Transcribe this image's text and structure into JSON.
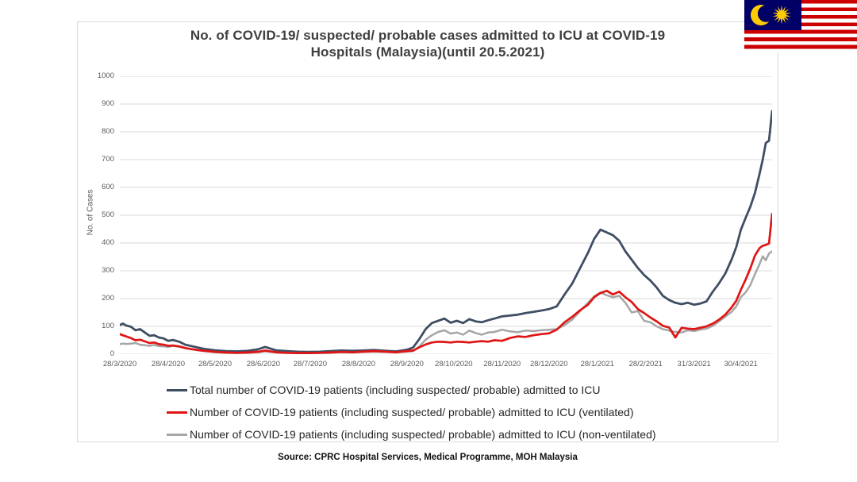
{
  "title_lines": [
    "No. of COVID-19/ suspected/ probable cases admitted to ICU at COVID-19",
    "Hospitals (Malaysia)(until 20.5.2021)"
  ],
  "source": "Source: CPRC Hospital Services, Medical Programme, MOH Malaysia",
  "flag": {
    "name": "flag-of-malaysia",
    "stripe_red": "#cc0001",
    "stripe_white": "#ffffff",
    "canton_blue": "#010066",
    "crescent_star_yellow": "#ffcc00"
  },
  "colors": {
    "grid": "#d9d9d9",
    "axis_text": "#595959",
    "title_text": "#3f3f3f",
    "legend_text": "#262626"
  },
  "chart_data": {
    "type": "line",
    "title": "No. of COVID-19/ suspected/ probable cases admitted to ICU at COVID-19 Hospitals (Malaysia)(until 20.5.2021)",
    "xlabel": "",
    "ylabel": "No. of Cases",
    "ylim": [
      0,
      1000
    ],
    "yticks": [
      0,
      100,
      200,
      300,
      400,
      500,
      600,
      700,
      800,
      900,
      1000
    ],
    "grid": "horizontal",
    "legend_position": "bottom-left",
    "x_total_days": 418,
    "x_start_date": "28/3/2020",
    "x_end_date": "20/5/2021",
    "x_tick_labels": [
      "28/3/2020",
      "28/4/2020",
      "28/5/2020",
      "28/6/2020",
      "28/7/2020",
      "28/8/2020",
      "28/9/2020",
      "28/10/2020",
      "28/11/2020",
      "28/12/2020",
      "28/1/2021",
      "28/2/2021",
      "31/3/2021",
      "30/4/2021"
    ],
    "x_tick_days": [
      0,
      31,
      61,
      92,
      122,
      153,
      184,
      214,
      245,
      275,
      306,
      337,
      368,
      398
    ],
    "x_days": [
      0,
      2,
      4,
      7,
      10,
      13,
      16,
      19,
      22,
      25,
      28,
      31,
      34,
      38,
      42,
      46,
      50,
      54,
      58,
      61,
      68,
      75,
      82,
      89,
      93,
      100,
      107,
      114,
      121,
      128,
      135,
      142,
      149,
      156,
      163,
      170,
      177,
      184,
      188,
      192,
      196,
      200,
      204,
      208,
      212,
      216,
      220,
      224,
      228,
      232,
      236,
      240,
      245,
      250,
      255,
      260,
      265,
      270,
      275,
      280,
      285,
      290,
      295,
      300,
      304,
      308,
      312,
      316,
      320,
      324,
      328,
      332,
      336,
      340,
      344,
      348,
      352,
      356,
      360,
      364,
      368,
      372,
      376,
      380,
      384,
      388,
      392,
      395,
      398,
      401,
      404,
      407,
      410,
      412,
      414,
      416,
      418
    ],
    "series": [
      {
        "name": "Total number of COVID-19 patients (including suspected/ probable) admitted to ICU",
        "color": "#3f4e63",
        "stroke_width": 2.8,
        "values": [
          105,
          110,
          103,
          99,
          86,
          90,
          78,
          66,
          68,
          60,
          57,
          48,
          51,
          45,
          34,
          29,
          24,
          19,
          16,
          14,
          11,
          10,
          12,
          18,
          26,
          14,
          11,
          9,
          8,
          9,
          11,
          13,
          12,
          13,
          15,
          12,
          10,
          16,
          24,
          55,
          90,
          112,
          120,
          128,
          113,
          120,
          112,
          126,
          118,
          115,
          122,
          128,
          136,
          139,
          142,
          148,
          152,
          157,
          162,
          172,
          215,
          255,
          310,
          365,
          415,
          448,
          438,
          428,
          408,
          370,
          340,
          310,
          285,
          265,
          240,
          210,
          195,
          185,
          180,
          185,
          178,
          182,
          190,
          225,
          255,
          290,
          340,
          385,
          448,
          490,
          530,
          580,
          650,
          700,
          760,
          768,
          875
        ]
      },
      {
        "name": "Number of COVID-19 patients (including suspected/ probable) admitted to ICU (ventilated)",
        "color": "#e01414",
        "stroke_width": 2.7,
        "values": [
          72,
          68,
          64,
          58,
          50,
          52,
          46,
          40,
          42,
          36,
          34,
          30,
          31,
          28,
          22,
          18,
          15,
          12,
          10,
          8,
          6,
          5,
          6,
          9,
          13,
          7,
          5,
          4,
          4,
          5,
          6,
          8,
          7,
          9,
          11,
          9,
          7,
          11,
          13,
          25,
          35,
          42,
          45,
          44,
          42,
          45,
          44,
          42,
          45,
          47,
          45,
          50,
          48,
          58,
          64,
          62,
          68,
          72,
          75,
          88,
          115,
          135,
          158,
          178,
          205,
          220,
          228,
          215,
          225,
          205,
          188,
          162,
          148,
          132,
          118,
          102,
          96,
          60,
          95,
          92,
          90,
          95,
          100,
          110,
          124,
          142,
          168,
          192,
          232,
          268,
          308,
          355,
          382,
          390,
          393,
          398,
          505
        ]
      },
      {
        "name": "Number of COVID-19 patients (including suspected/ probable) admitted to ICU (non-ventilated)",
        "color": "#a6a6a6",
        "stroke_width": 2.5,
        "values": [
          36,
          38,
          37,
          38,
          40,
          34,
          32,
          30,
          33,
          29,
          28,
          26,
          30,
          27,
          21,
          18,
          14,
          11,
          9,
          7,
          5,
          4,
          5,
          7,
          10,
          6,
          5,
          4,
          3,
          4,
          5,
          7,
          6,
          8,
          9,
          8,
          6,
          9,
          11,
          28,
          52,
          68,
          80,
          86,
          74,
          78,
          70,
          85,
          76,
          70,
          78,
          80,
          88,
          82,
          79,
          85,
          83,
          86,
          88,
          90,
          105,
          125,
          155,
          185,
          208,
          222,
          212,
          205,
          210,
          185,
          150,
          155,
          120,
          115,
          100,
          90,
          85,
          80,
          78,
          86,
          83,
          88,
          92,
          102,
          118,
          135,
          152,
          172,
          205,
          222,
          248,
          288,
          325,
          352,
          338,
          362,
          370
        ]
      }
    ]
  }
}
